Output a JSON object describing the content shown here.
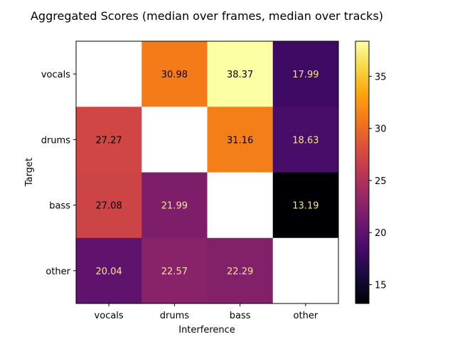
{
  "chart_data": {
    "type": "heatmap",
    "title": "Aggregated Scores (median over frames, median over tracks)",
    "xlabel": "Interference",
    "ylabel": "Target",
    "x_categories": [
      "vocals",
      "drums",
      "bass",
      "other"
    ],
    "y_categories": [
      "vocals",
      "drums",
      "bass",
      "other"
    ],
    "values": [
      [
        null,
        30.98,
        38.37,
        17.99
      ],
      [
        27.27,
        null,
        31.16,
        18.63
      ],
      [
        27.08,
        21.99,
        null,
        13.19
      ],
      [
        20.04,
        22.57,
        22.29,
        null
      ]
    ],
    "value_labels": [
      [
        "",
        "30.98",
        "38.37",
        "17.99"
      ],
      [
        "27.27",
        "",
        "31.16",
        "18.63"
      ],
      [
        "27.08",
        "21.99",
        "",
        "13.19"
      ],
      [
        "20.04",
        "22.57",
        "22.29",
        ""
      ]
    ],
    "colormap": "inferno",
    "colorbar": {
      "range": [
        13.19,
        38.37
      ],
      "ticks": [
        15,
        20,
        25,
        30,
        35
      ],
      "tick_labels": [
        "15",
        "20",
        "25",
        "30",
        "35"
      ]
    },
    "grid": false,
    "legend": "colorbar right"
  }
}
